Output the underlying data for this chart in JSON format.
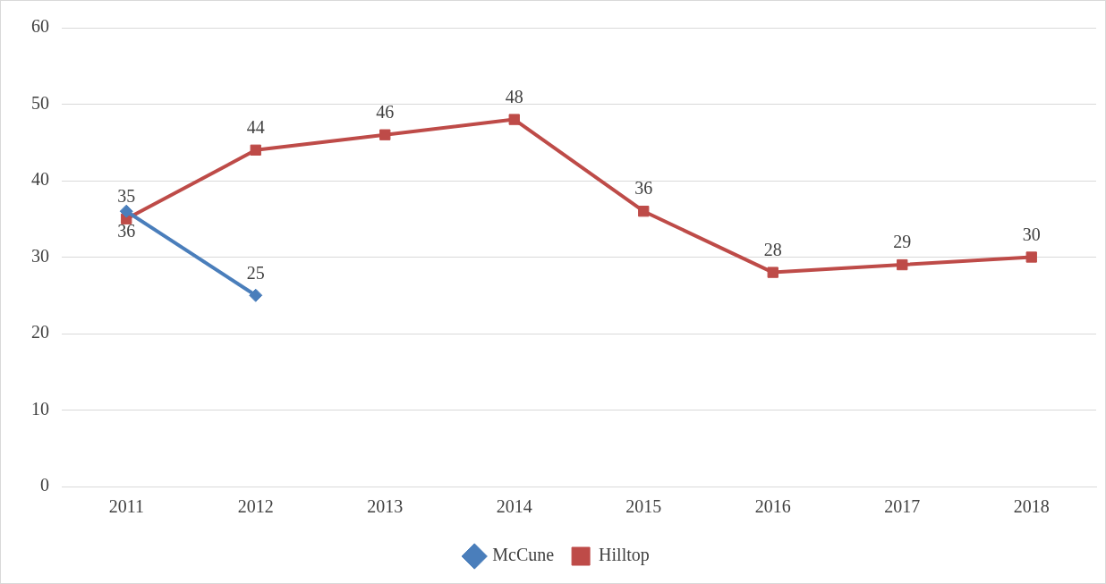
{
  "chart_data": {
    "type": "line",
    "categories": [
      "2011",
      "2012",
      "2013",
      "2014",
      "2015",
      "2016",
      "2017",
      "2018"
    ],
    "series": [
      {
        "name": "McCune",
        "color": "#4a7ebb",
        "marker": "diamond",
        "values": [
          36,
          25,
          null,
          null,
          null,
          null,
          null,
          null
        ]
      },
      {
        "name": "Hilltop",
        "color": "#be4b48",
        "marker": "square",
        "values": [
          35,
          44,
          46,
          48,
          36,
          28,
          29,
          30
        ]
      }
    ],
    "ylim": [
      0,
      60
    ],
    "yticks": [
      0,
      10,
      20,
      30,
      40,
      50,
      60
    ],
    "grid": "y",
    "legend": "bottom",
    "data_labels": true,
    "line_style": "solid"
  }
}
